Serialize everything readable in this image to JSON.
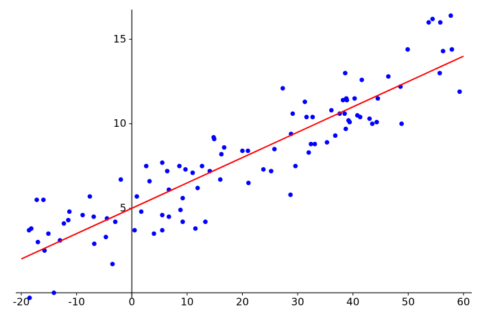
{
  "chart_data": {
    "type": "scatter",
    "xlim": [
      -21,
      61
    ],
    "ylim": [
      -0.5,
      17
    ],
    "xticks": [
      -20,
      -10,
      0,
      10,
      20,
      30,
      40,
      50,
      60
    ],
    "yticks": [
      5,
      10,
      15
    ],
    "grid": false,
    "series": [
      {
        "type": "scatter",
        "color": "#0000ff",
        "x": [
          -18.5,
          -18.6,
          -18.2,
          -17.2,
          -16.0,
          -17.0,
          -15.8,
          -15.1,
          -14.1,
          -13.0,
          -12.3,
          -11.5,
          -11.3,
          -8.9,
          -7.6,
          -6.9,
          -6.8,
          -4.7,
          -4.5,
          -3.5,
          -3.0,
          -2.0,
          0.5,
          0.9,
          1.7,
          2.6,
          3.2,
          4.0,
          5.5,
          5.5,
          5.5,
          6.4,
          6.7,
          6.7,
          8.6,
          8.8,
          9.2,
          9.2,
          9.7,
          11.0,
          11.5,
          11.9,
          12.7,
          13.3,
          14.1,
          14.8,
          14.9,
          16.0,
          16.2,
          16.7,
          20.0,
          21.0,
          21.1,
          23.8,
          25.2,
          25.8,
          27.3,
          28.7,
          28.8,
          29.1,
          29.6,
          31.3,
          31.6,
          32.0,
          32.4,
          32.7,
          33.1,
          35.3,
          36.1,
          36.8,
          37.6,
          38.2,
          38.5,
          38.6,
          38.7,
          38.8,
          38.9,
          39.2,
          39.4,
          40.3,
          40.8,
          41.3,
          41.6,
          43.0,
          43.5,
          44.3,
          44.5,
          46.4,
          48.6,
          48.8,
          49.9,
          53.7,
          54.4,
          55.7,
          55.8,
          56.3,
          57.7,
          57.9,
          59.3
        ],
        "values": [
          -0.3,
          3.7,
          3.8,
          5.5,
          5.5,
          3.0,
          2.5,
          3.5,
          0.0,
          3.1,
          4.1,
          4.3,
          4.8,
          4.6,
          5.7,
          4.5,
          2.9,
          3.3,
          4.4,
          1.7,
          4.2,
          6.7,
          3.7,
          5.7,
          4.8,
          7.5,
          6.6,
          3.5,
          7.7,
          4.6,
          3.7,
          7.2,
          6.1,
          4.5,
          7.5,
          4.9,
          5.6,
          4.2,
          7.3,
          7.1,
          3.8,
          6.2,
          7.5,
          4.2,
          7.2,
          9.2,
          9.1,
          6.7,
          8.2,
          8.6,
          8.4,
          8.4,
          6.5,
          7.3,
          7.2,
          8.5,
          12.1,
          5.8,
          9.4,
          10.6,
          7.5,
          11.3,
          10.4,
          8.3,
          8.8,
          10.4,
          8.8,
          8.9,
          10.8,
          9.3,
          10.6,
          11.4,
          10.6,
          13.0,
          9.7,
          11.5,
          11.4,
          10.2,
          10.1,
          11.5,
          10.5,
          10.4,
          12.6,
          10.3,
          10.0,
          10.1,
          11.5,
          12.8,
          12.2,
          10.0,
          14.4,
          16.0,
          16.2,
          13.0,
          16.0,
          14.3,
          16.4,
          14.4,
          11.9
        ]
      },
      {
        "type": "line",
        "color": "#ff0000",
        "x": [
          -20,
          60
        ],
        "values": [
          2.0,
          14.0
        ]
      }
    ]
  }
}
